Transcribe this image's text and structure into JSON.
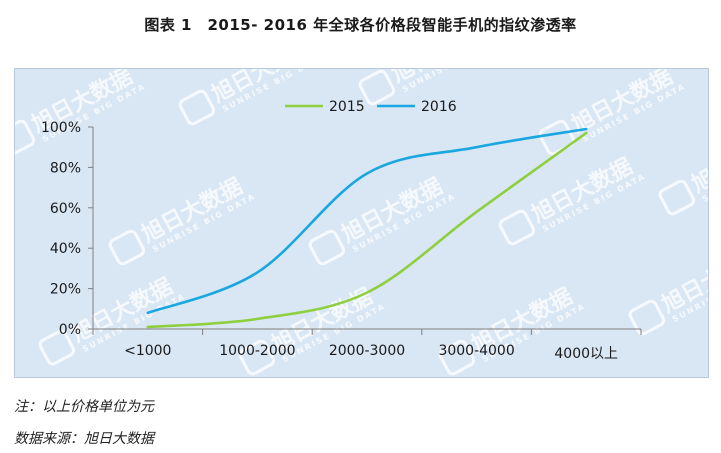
{
  "figure": {
    "title": "图表 1　2015- 2016 年全球各价格段智能手机的指纹渗透率"
  },
  "notes": {
    "note": "注：以上价格单位为元",
    "source": "数据来源：旭日大数据"
  },
  "watermark": {
    "cn": "旭日大数据",
    "en": "SUNRISE BIG DATA"
  },
  "colors": {
    "background": "#d9e7f5",
    "series_2015": "#8ecf3f",
    "series_2016": "#1aa7e0"
  },
  "chart_data": {
    "type": "line",
    "categories": [
      "<1000",
      "1000-2000",
      "2000-3000",
      "3000-4000",
      "4000以上"
    ],
    "series": [
      {
        "name": "2015",
        "values": [
          1,
          5,
          18,
          58,
          97
        ],
        "color": "#8ecf3f"
      },
      {
        "name": "2016",
        "values": [
          8,
          28,
          77,
          90,
          99
        ],
        "color": "#1aa7e0"
      }
    ],
    "yticks": [
      "0%",
      "20%",
      "40%",
      "60%",
      "80%",
      "100%"
    ],
    "ylim": [
      0,
      100
    ],
    "grid": false,
    "legend": "top-center",
    "smooth": true
  }
}
